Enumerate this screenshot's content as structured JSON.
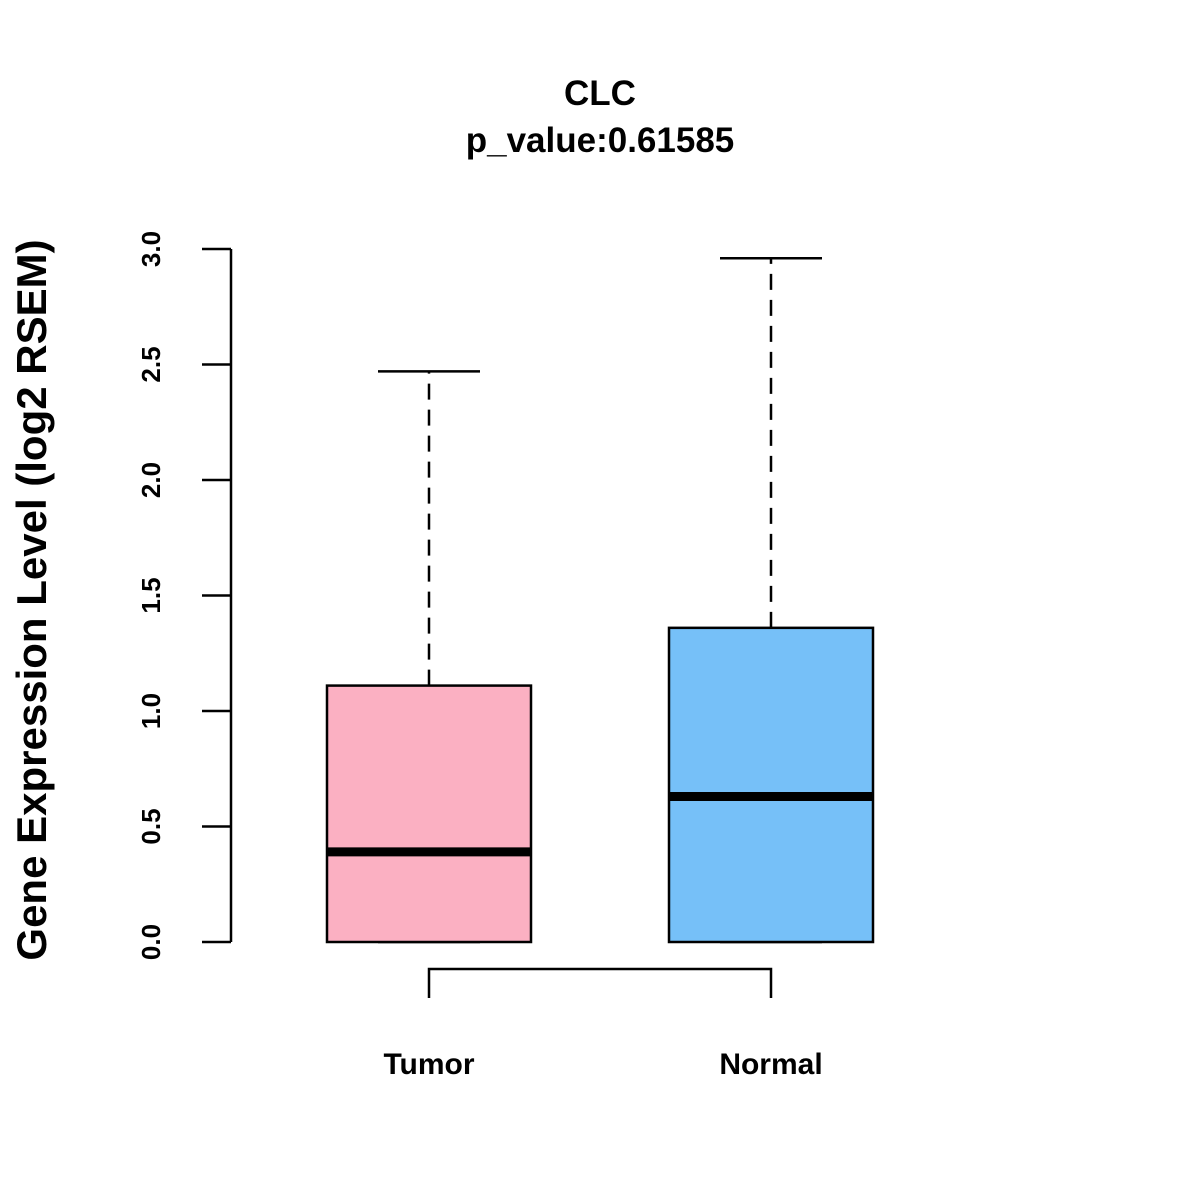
{
  "chart_data": {
    "type": "boxplot",
    "title": "CLC",
    "subtitle": "p_value:0.61585",
    "xlabel": "",
    "ylabel": "Gene Expression Level (log2 RSEM)",
    "ylim": [
      0,
      3
    ],
    "yticks": [
      "0.0",
      "0.5",
      "1.0",
      "1.5",
      "2.0",
      "2.5",
      "3.0"
    ],
    "categories": [
      "Tumor",
      "Normal"
    ],
    "series": [
      {
        "name": "Tumor",
        "min": 0.0,
        "q1": 0.0,
        "median": 0.39,
        "q3": 1.11,
        "max": 2.47,
        "color": "#FBB0C2"
      },
      {
        "name": "Normal",
        "min": 0.0,
        "q1": 0.0,
        "median": 0.63,
        "q3": 1.36,
        "max": 2.96,
        "color": "#76C0F8"
      }
    ],
    "comparison_bracket": {
      "from": "Tumor",
      "to": "Normal"
    },
    "grid": false,
    "legend": "none"
  }
}
